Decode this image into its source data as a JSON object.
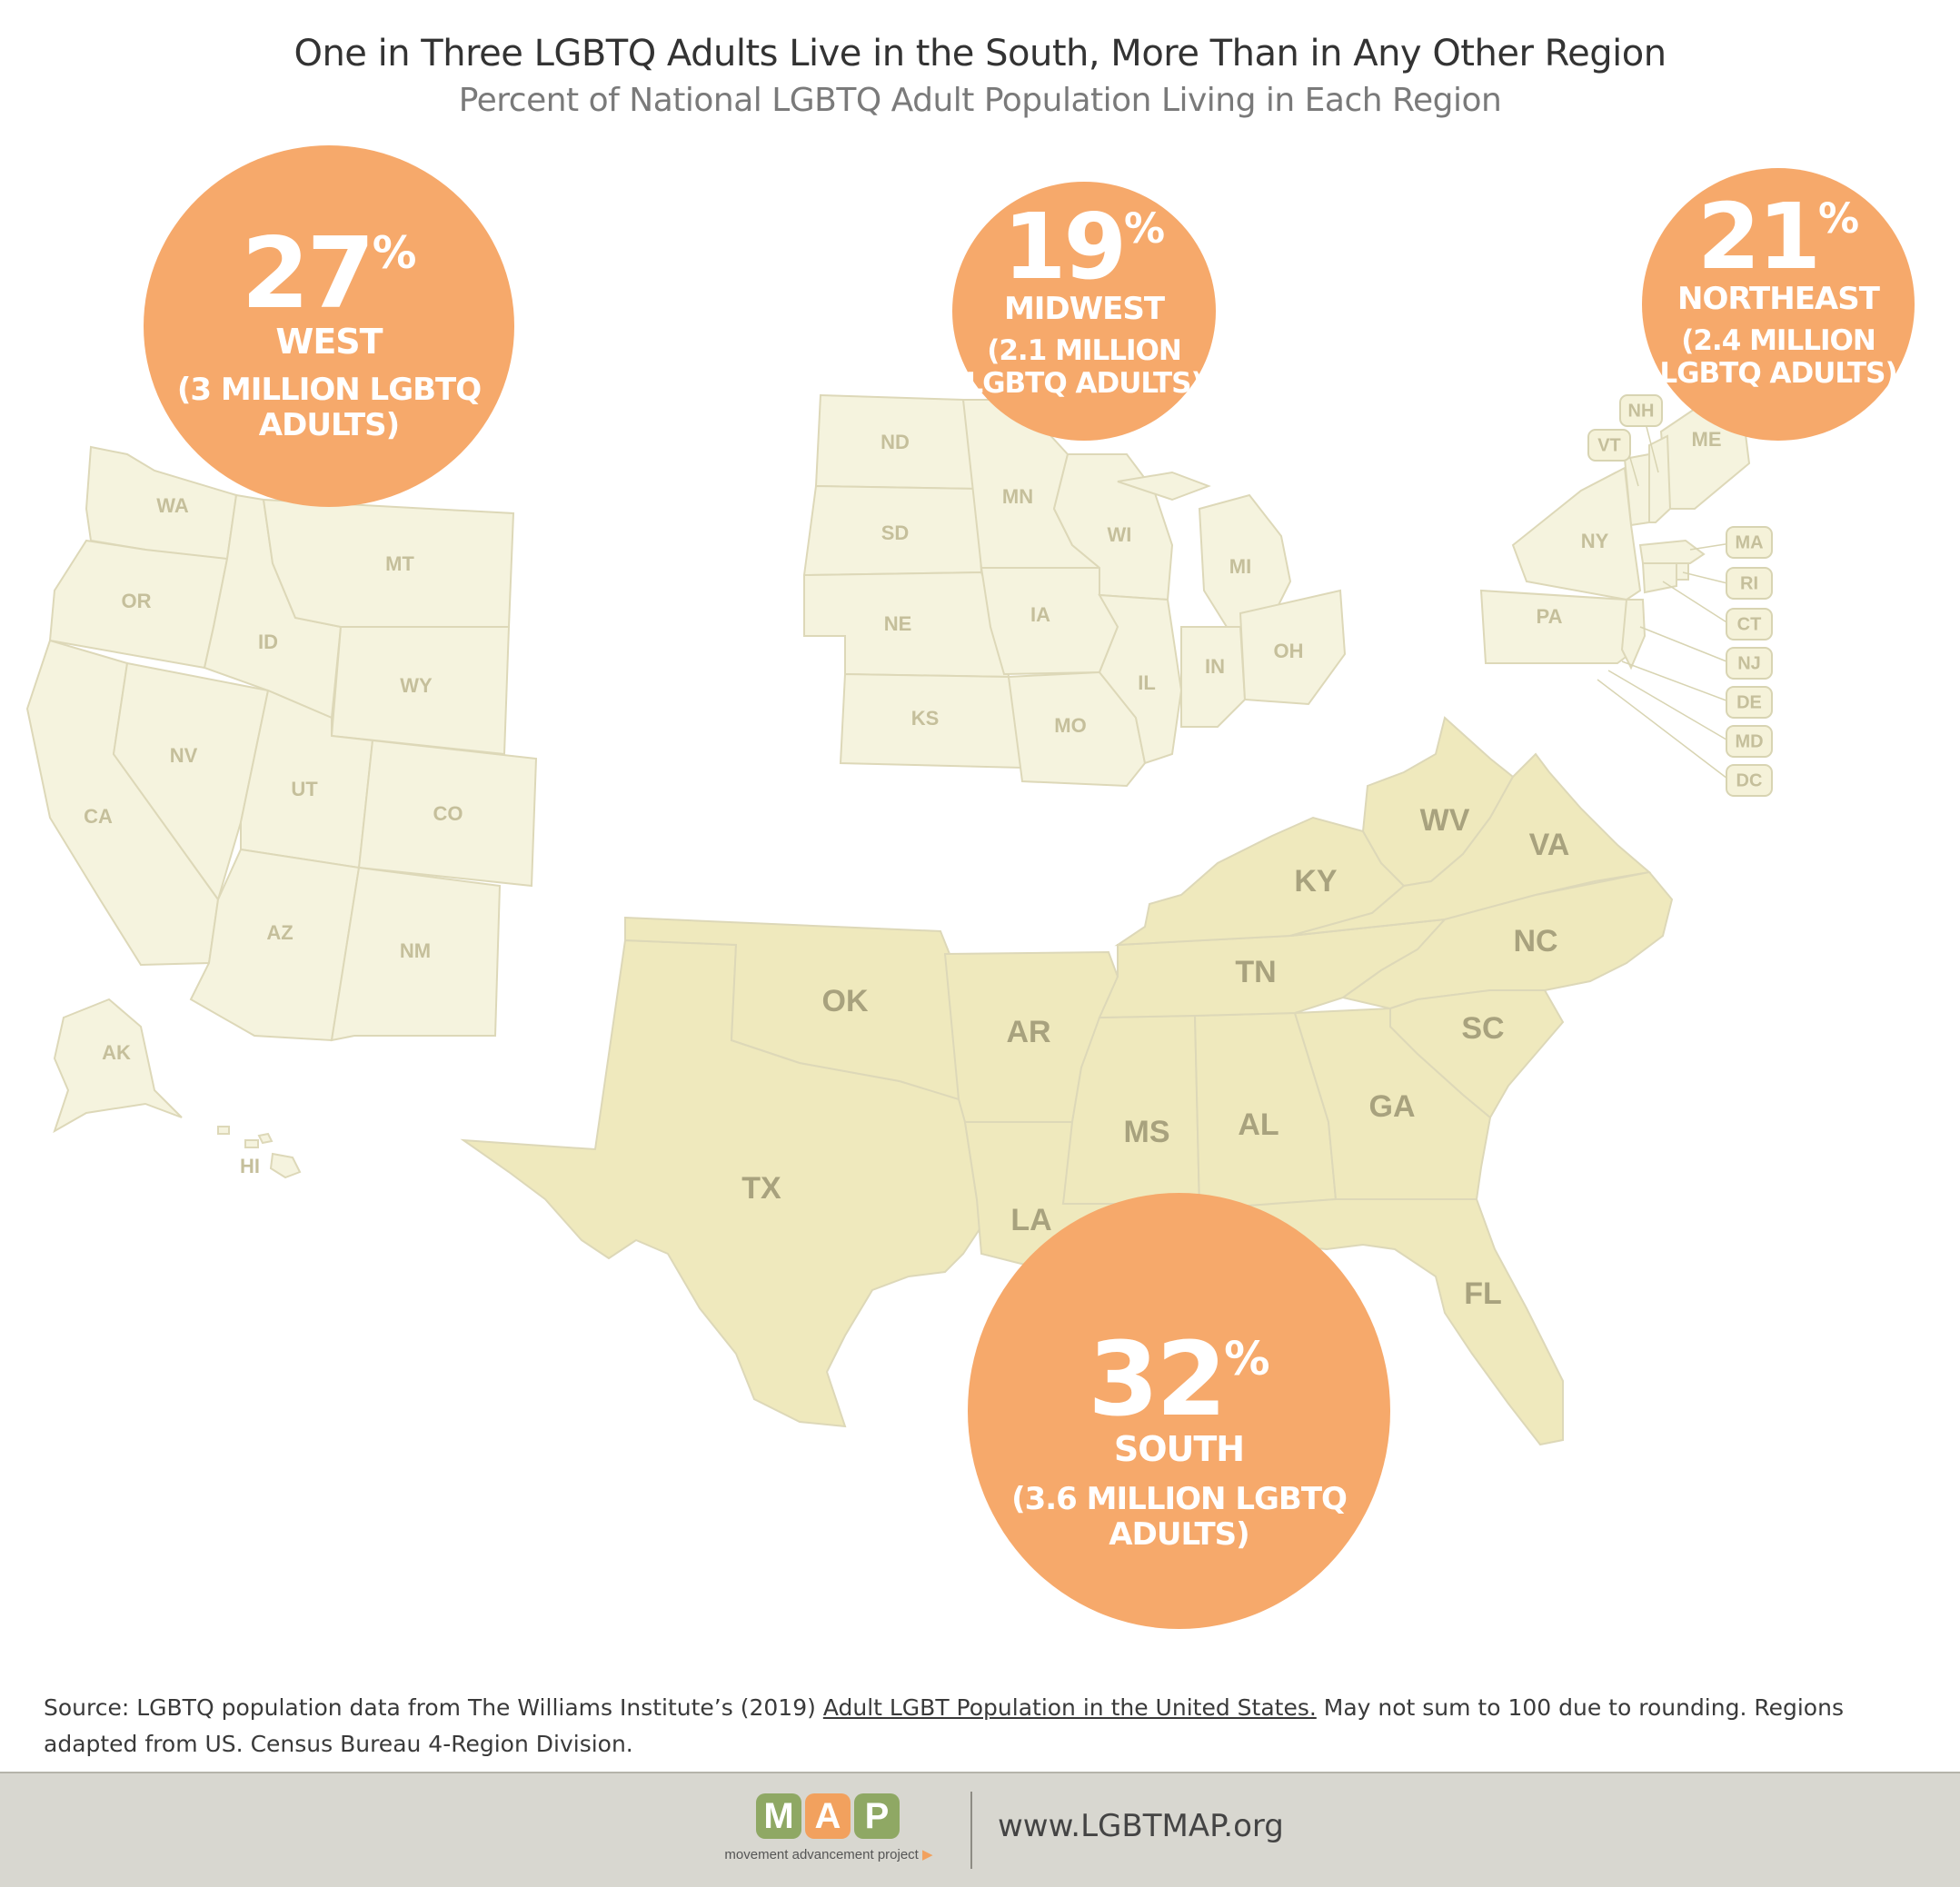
{
  "header": {
    "title": "One in Three LGBTQ Adults Live in the South, More Than in Any Other Region",
    "subtitle": "Percent of National LGBTQ Adult Population Living in Each Region"
  },
  "regions": {
    "west": {
      "percent": "27",
      "percent_sign": "%",
      "name": "WEST",
      "count": "(3 MILLION LGBTQ ADULTS)"
    },
    "midwest": {
      "percent": "19",
      "percent_sign": "%",
      "name": "MIDWEST",
      "count_line1": "(2.1 MILLION",
      "count_line2": "LGBTQ ADULTS)"
    },
    "northeast": {
      "percent": "21",
      "percent_sign": "%",
      "name": "NORTHEAST",
      "count_line1": "(2.4 MILLION",
      "count_line2": "LGBTQ ADULTS)"
    },
    "south": {
      "percent": "32",
      "percent_sign": "%",
      "name": "SOUTH",
      "count": "(3.6 MILLION LGBTQ ADULTS)"
    }
  },
  "states": {
    "west": [
      "WA",
      "OR",
      "CA",
      "NV",
      "ID",
      "MT",
      "WY",
      "UT",
      "CO",
      "AZ",
      "NM",
      "AK",
      "HI"
    ],
    "midwest": [
      "ND",
      "SD",
      "NE",
      "KS",
      "MN",
      "IA",
      "MO",
      "WI",
      "IL",
      "MI",
      "IN",
      "OH"
    ],
    "northeast": [
      "ME",
      "NH",
      "VT",
      "NY",
      "PA",
      "MA",
      "RI",
      "CT",
      "NJ"
    ],
    "south": [
      "TX",
      "OK",
      "AR",
      "LA",
      "MS",
      "AL",
      "TN",
      "KY",
      "WV",
      "VA",
      "NC",
      "SC",
      "GA",
      "FL",
      "DE",
      "MD",
      "DC"
    ]
  },
  "colors": {
    "bubble": "#f6a96b",
    "land_light": "#f5f3de",
    "land_south": "#efe9bd",
    "state_border": "#ddd8b8"
  },
  "source": {
    "prefix": "Source: LGBTQ population data from The Williams Institute’s (2019) ",
    "link": "Adult LGBT Population in the United States.",
    "suffix": " May not sum to 100 due to rounding. Regions adapted from US. Census Bureau 4-Region Division."
  },
  "footer": {
    "logo_letters": [
      "M",
      "A",
      "P"
    ],
    "logo_tagline": "movement advancement project",
    "url": "www.LGBTMAP.org"
  }
}
